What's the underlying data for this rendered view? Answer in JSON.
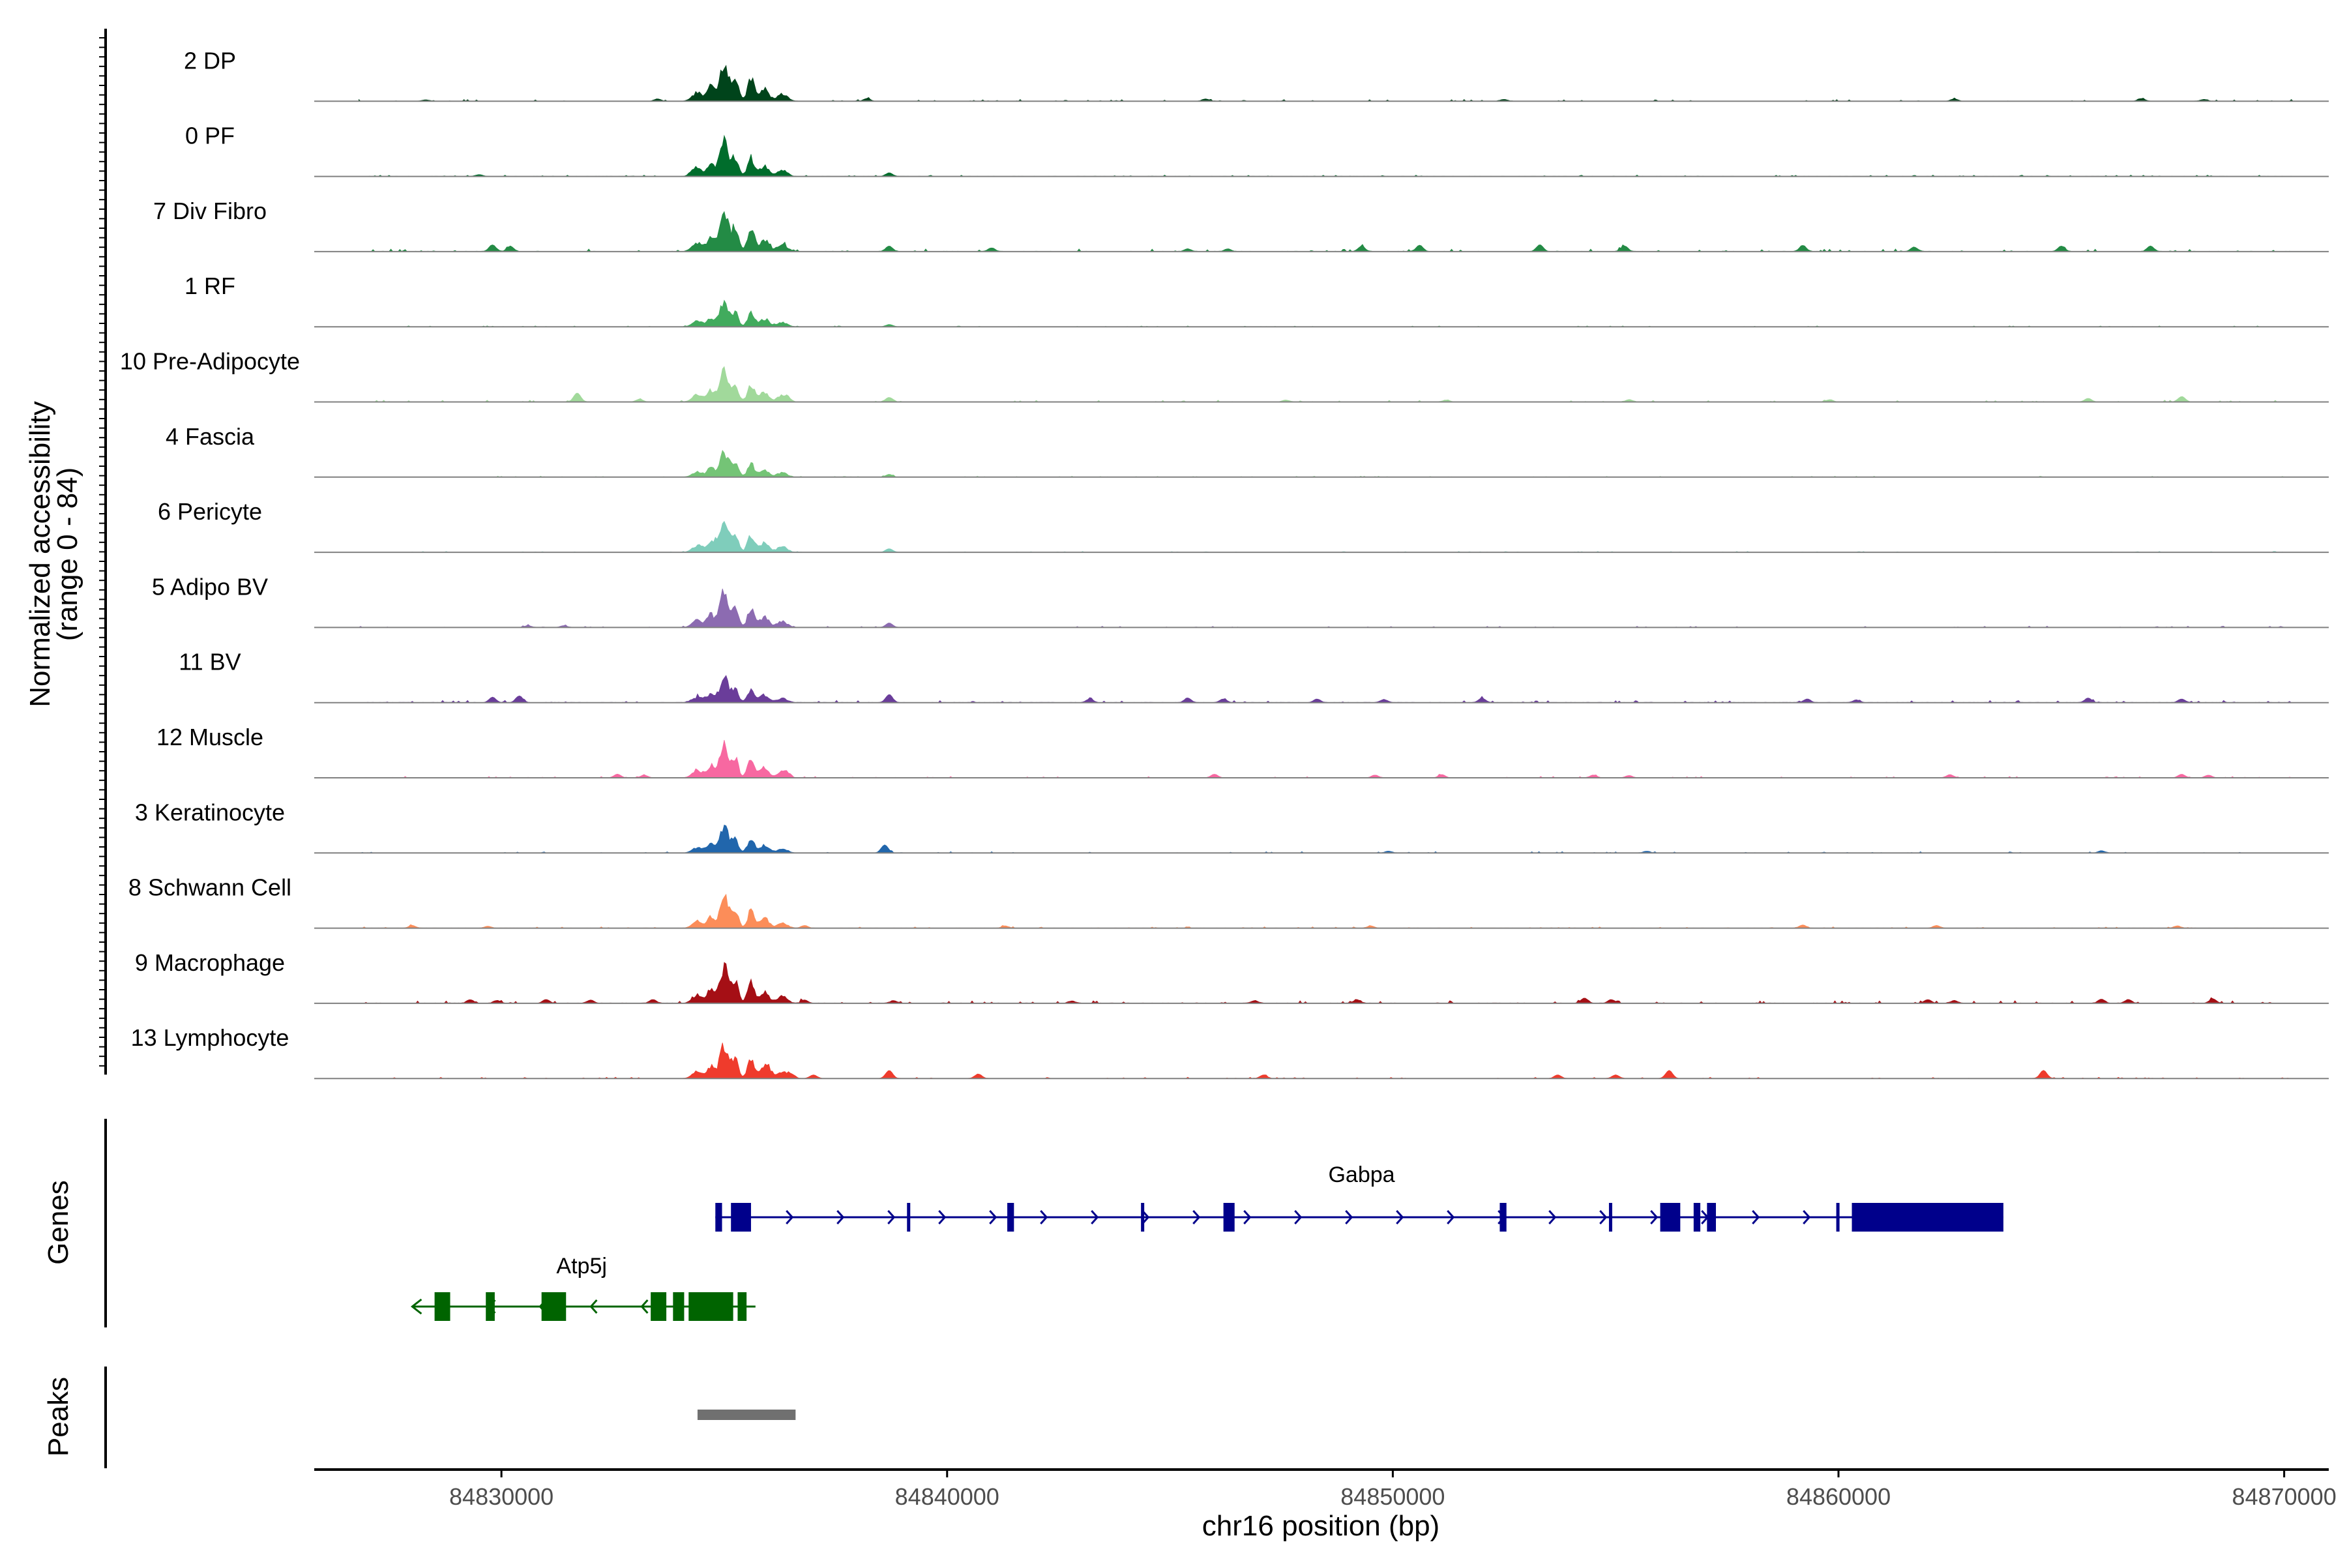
{
  "chart_data": {
    "type": "area",
    "title": "",
    "chromosome": "chr16",
    "xlabel": "chr16 position (bp)",
    "ylabel_line1": "Normalized accessibility",
    "ylabel_line2": "(range 0 - 84)",
    "y_range": [
      0,
      84
    ],
    "xlim": [
      84825800,
      84871000
    ],
    "xticks": [
      84830000,
      84840000,
      84850000,
      84860000,
      84870000
    ],
    "xtick_labels": [
      "84830000",
      "84840000",
      "84850000",
      "84860000",
      "84870000"
    ],
    "tracks": [
      {
        "name": "2 DP",
        "color": "#00441b",
        "peak_height": 0.95,
        "noise": 0.04,
        "extras": [
          [
            84828300,
            0.03
          ],
          [
            84833500,
            0.05
          ],
          [
            84838200,
            0.06
          ],
          [
            84845800,
            0.05
          ],
          [
            84852500,
            0.04
          ],
          [
            84862600,
            0.05
          ],
          [
            84866800,
            0.06
          ],
          [
            84868200,
            0.04
          ]
        ]
      },
      {
        "name": "0 PF",
        "color": "#006d2c",
        "peak_height": 0.8,
        "noise": 0.03,
        "extras": [
          [
            84838700,
            0.08
          ],
          [
            84829500,
            0.04
          ],
          [
            84834300,
            0.05
          ]
        ]
      },
      {
        "name": "7 Div Fibro",
        "color": "#238b45",
        "peak_height": 0.98,
        "noise": 0.06,
        "extras": [
          [
            84829800,
            0.15
          ],
          [
            84830200,
            0.12
          ],
          [
            84838700,
            0.12
          ],
          [
            84841000,
            0.08
          ],
          [
            84845400,
            0.06
          ],
          [
            84846300,
            0.06
          ],
          [
            84849300,
            0.12
          ],
          [
            84850600,
            0.14
          ],
          [
            84853300,
            0.15
          ],
          [
            84855200,
            0.12
          ],
          [
            84859200,
            0.14
          ],
          [
            84861700,
            0.1
          ],
          [
            84867000,
            0.12
          ],
          [
            84865000,
            0.12
          ]
        ]
      },
      {
        "name": "1 RF",
        "color": "#41ab5d",
        "peak_height": 0.6,
        "noise": 0.02,
        "extras": [
          [
            84838700,
            0.05
          ]
        ]
      },
      {
        "name": "10 Pre-Adipocyte",
        "color": "#a1d99b",
        "peak_height": 0.75,
        "noise": 0.04,
        "extras": [
          [
            84831700,
            0.2
          ],
          [
            84833100,
            0.06
          ],
          [
            84836400,
            0.07
          ],
          [
            84838700,
            0.1
          ],
          [
            84847600,
            0.04
          ],
          [
            84851200,
            0.04
          ],
          [
            84855300,
            0.05
          ],
          [
            84859800,
            0.05
          ],
          [
            84865600,
            0.08
          ],
          [
            84867700,
            0.12
          ]
        ]
      },
      {
        "name": "4 Fascia",
        "color": "#74c476",
        "peak_height": 0.58,
        "noise": 0.02,
        "extras": [
          [
            84838700,
            0.06
          ]
        ]
      },
      {
        "name": "6 Pericyte",
        "color": "#7fcdbb",
        "peak_height": 0.75,
        "noise": 0.02,
        "extras": [
          [
            84838700,
            0.08
          ],
          [
            84834800,
            0.06
          ]
        ]
      },
      {
        "name": "5 Adipo BV",
        "color": "#8c6bb1",
        "peak_height": 0.82,
        "noise": 0.03,
        "extras": [
          [
            84838700,
            0.1
          ],
          [
            84830600,
            0.04
          ],
          [
            84831400,
            0.04
          ]
        ]
      },
      {
        "name": "11 BV",
        "color": "#6a3d9a",
        "peak_height": 0.58,
        "noise": 0.05,
        "extras": [
          [
            84829800,
            0.12
          ],
          [
            84830400,
            0.15
          ],
          [
            84838700,
            0.18
          ],
          [
            84843200,
            0.08
          ],
          [
            84845400,
            0.1
          ],
          [
            84846200,
            0.08
          ],
          [
            84848300,
            0.08
          ],
          [
            84849800,
            0.07
          ],
          [
            84852000,
            0.1
          ],
          [
            84859300,
            0.08
          ],
          [
            84860400,
            0.06
          ],
          [
            84865600,
            0.1
          ],
          [
            84867700,
            0.08
          ]
        ]
      },
      {
        "name": "12 Muscle",
        "color": "#f768a1",
        "peak_height": 0.8,
        "noise": 0.03,
        "extras": [
          [
            84832600,
            0.08
          ],
          [
            84833200,
            0.06
          ],
          [
            84836400,
            0.08
          ],
          [
            84846000,
            0.08
          ],
          [
            84849600,
            0.06
          ],
          [
            84851100,
            0.07
          ],
          [
            84854500,
            0.06
          ],
          [
            84855300,
            0.05
          ],
          [
            84862500,
            0.07
          ],
          [
            84867700,
            0.08
          ],
          [
            84868300,
            0.06
          ]
        ]
      },
      {
        "name": "3 Keratinocyte",
        "color": "#2166ac",
        "peak_height": 0.6,
        "noise": 0.03,
        "extras": [
          [
            84838600,
            0.18
          ],
          [
            84849900,
            0.04
          ],
          [
            84855700,
            0.04
          ],
          [
            84865900,
            0.05
          ]
        ]
      },
      {
        "name": "8 Schwann Cell",
        "color": "#fc8d59",
        "peak_height": 0.72,
        "noise": 0.03,
        "extras": [
          [
            84828000,
            0.06
          ],
          [
            84829700,
            0.04
          ],
          [
            84836800,
            0.06
          ],
          [
            84841300,
            0.05
          ],
          [
            84849500,
            0.05
          ],
          [
            84859200,
            0.07
          ],
          [
            84862200,
            0.06
          ],
          [
            84867600,
            0.05
          ]
        ]
      },
      {
        "name": "9 Macrophage",
        "color": "#a50f15",
        "peak_height": 0.88,
        "noise": 0.06,
        "extras": [
          [
            84829300,
            0.08
          ],
          [
            84829900,
            0.06
          ],
          [
            84831000,
            0.08
          ],
          [
            84832000,
            0.07
          ],
          [
            84833400,
            0.08
          ],
          [
            84836800,
            0.07
          ],
          [
            84838800,
            0.06
          ],
          [
            84842800,
            0.05
          ],
          [
            84846900,
            0.06
          ],
          [
            84849200,
            0.08
          ],
          [
            84854300,
            0.12
          ],
          [
            84854900,
            0.08
          ],
          [
            84862000,
            0.08
          ],
          [
            84862600,
            0.06
          ],
          [
            84865900,
            0.09
          ],
          [
            84866500,
            0.08
          ],
          [
            84868400,
            0.1
          ]
        ]
      },
      {
        "name": "13 Lymphocyte",
        "color": "#ef3b2c",
        "peak_height": 0.78,
        "noise": 0.03,
        "extras": [
          [
            84836000,
            0.14
          ],
          [
            84838700,
            0.18
          ],
          [
            84840700,
            0.1
          ],
          [
            84847100,
            0.08
          ],
          [
            84853700,
            0.08
          ],
          [
            84855000,
            0.08
          ],
          [
            84856200,
            0.18
          ],
          [
            84864600,
            0.18
          ],
          [
            84836500,
            0.1
          ],
          [
            84837000,
            0.08
          ]
        ]
      }
    ],
    "genes": [
      {
        "name": "Gabpa",
        "strand": "+",
        "color": "#00008b",
        "start": 84834800,
        "end": 84863700,
        "exons": [
          [
            84834800,
            84834950
          ],
          [
            84835150,
            84835600
          ],
          [
            84839100,
            84839170
          ],
          [
            84841350,
            84841500
          ],
          [
            84844350,
            84844420
          ],
          [
            84846200,
            84846450
          ],
          [
            84852400,
            84852550
          ],
          [
            84854850,
            84854920
          ],
          [
            84856000,
            84856450
          ],
          [
            84856750,
            84856900
          ],
          [
            84857050,
            84857250
          ],
          [
            84859950,
            84860020
          ],
          [
            84860300,
            84863700
          ]
        ]
      },
      {
        "name": "Atp5j",
        "strand": "-",
        "color": "#006400",
        "start": 84828000,
        "end": 84835700,
        "exons": [
          [
            84828500,
            84828850
          ],
          [
            84829650,
            84829850
          ],
          [
            84830900,
            84831450
          ],
          [
            84833350,
            84833700
          ],
          [
            84833850,
            84834100
          ],
          [
            84834200,
            84835200
          ],
          [
            84835300,
            84835500
          ]
        ]
      }
    ],
    "peaks": [
      {
        "start": 84834400,
        "end": 84836600,
        "color": "#707070"
      }
    ],
    "panel_labels": {
      "genes": "Genes",
      "peaks": "Peaks"
    },
    "grid": false,
    "legend": "none"
  }
}
